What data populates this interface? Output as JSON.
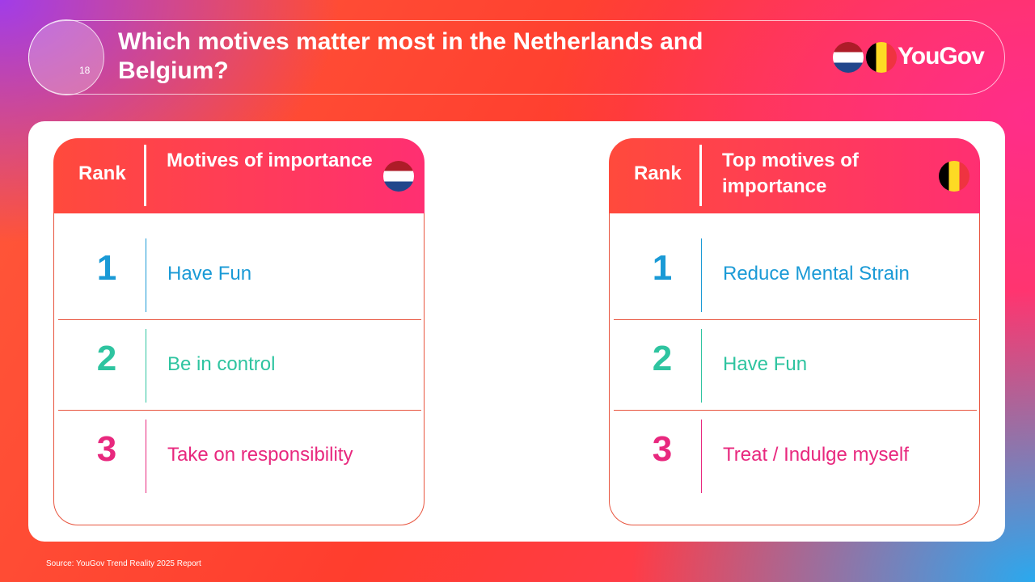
{
  "header": {
    "badge": "18",
    "title": "Which motives matter most in the Netherlands and Belgium?",
    "logo": "YouGov"
  },
  "tables": [
    {
      "rank_header": "Rank",
      "motive_header": "Motives of importance",
      "rows": [
        {
          "rank": 1,
          "motive": "Have Fun"
        },
        {
          "rank": 2,
          "motive": "Be in control"
        },
        {
          "rank": 3,
          "motive": "Take on responsibility"
        }
      ]
    },
    {
      "rank_header": "Rank",
      "motive_header": "Top motives of importance",
      "rows": [
        {
          "rank": 1,
          "motive": "Reduce Mental Strain"
        },
        {
          "rank": 2,
          "motive": "Have Fun"
        },
        {
          "rank": 3,
          "motive": "Treat / Indulge myself"
        }
      ]
    }
  ],
  "source": "Source: YouGov Trend Reality 2025 Report"
}
